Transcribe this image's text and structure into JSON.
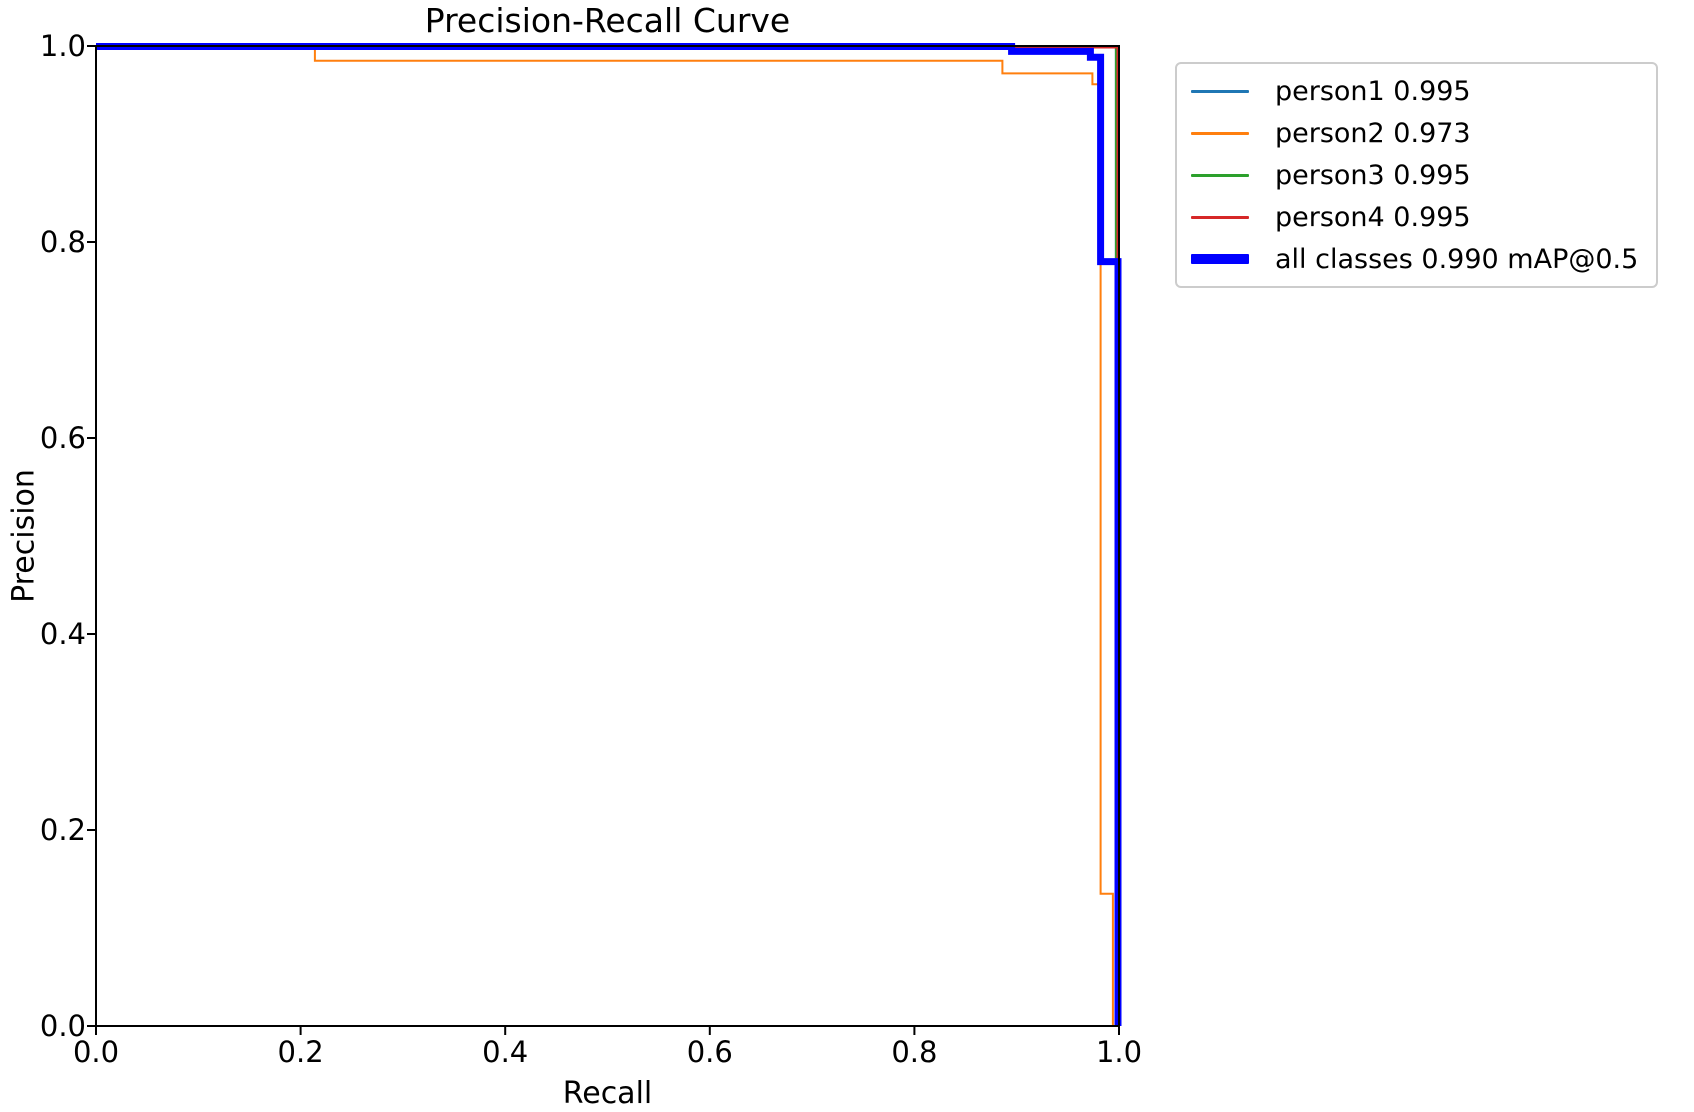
{
  "chart_data": {
    "type": "line",
    "title": "Precision-Recall Curve",
    "xlabel": "Recall",
    "ylabel": "Precision",
    "xlim": [
      0.0,
      1.0
    ],
    "ylim": [
      0.0,
      1.0
    ],
    "x_ticks": [
      "0.0",
      "0.2",
      "0.4",
      "0.6",
      "0.8",
      "1.0"
    ],
    "y_ticks": [
      "0.0",
      "0.2",
      "0.4",
      "0.6",
      "0.8",
      "1.0"
    ],
    "grid": false,
    "legend_position": "outside upper right",
    "axis_color": "#000000",
    "background_color": "#ffffff",
    "series": [
      {
        "name": "person1",
        "label": "person1 0.995",
        "ap": 0.995,
        "color": "#1f77b4",
        "line_width": 2,
        "points": [
          [
            0.0,
            1.0
          ],
          [
            0.997,
            1.0
          ],
          [
            0.997,
            0.0
          ]
        ]
      },
      {
        "name": "person2",
        "label": "person2 0.973",
        "ap": 0.973,
        "color": "#ff7f0e",
        "line_width": 2,
        "points": [
          [
            0.0,
            1.0
          ],
          [
            0.214,
            1.0
          ],
          [
            0.214,
            0.985
          ],
          [
            0.886,
            0.985
          ],
          [
            0.886,
            0.972
          ],
          [
            0.974,
            0.972
          ],
          [
            0.974,
            0.961
          ],
          [
            0.982,
            0.961
          ],
          [
            0.982,
            0.135
          ],
          [
            0.994,
            0.135
          ],
          [
            0.994,
            0.0
          ]
        ]
      },
      {
        "name": "person3",
        "label": "person3 0.995",
        "ap": 0.995,
        "color": "#2ca02c",
        "line_width": 2,
        "points": [
          [
            0.0,
            1.0
          ],
          [
            0.997,
            1.0
          ],
          [
            0.997,
            0.0
          ]
        ]
      },
      {
        "name": "person4",
        "label": "person4 0.995",
        "ap": 0.995,
        "color": "#d62728",
        "line_width": 2,
        "points": [
          [
            0.0,
            0.9985
          ],
          [
            0.9985,
            0.9985
          ],
          [
            0.9985,
            0.0
          ]
        ]
      },
      {
        "name": "all classes",
        "label": "all classes 0.990 mAP@0.5",
        "ap": 0.99,
        "color": "#0000ff",
        "line_width": 7,
        "points": [
          [
            0.0,
            0.9995
          ],
          [
            0.895,
            0.9995
          ],
          [
            0.895,
            0.9945
          ],
          [
            0.972,
            0.9945
          ],
          [
            0.972,
            0.9885
          ],
          [
            0.982,
            0.9885
          ],
          [
            0.982,
            0.78
          ],
          [
            0.999,
            0.78
          ],
          [
            0.999,
            0.0
          ]
        ]
      }
    ]
  }
}
